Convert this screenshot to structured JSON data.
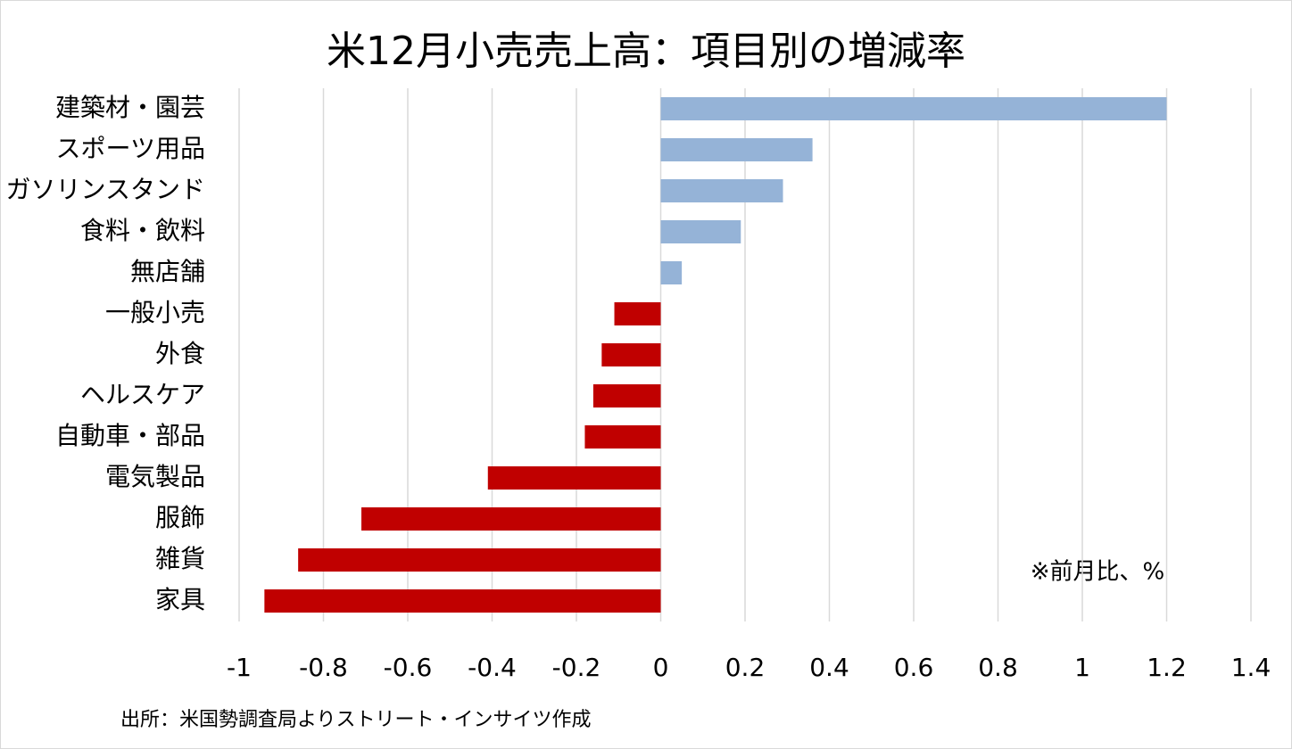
{
  "chart_data": {
    "type": "barh",
    "title": "米12月小売売上高：項目別の増減率",
    "annotation": "※前月比、%",
    "source": "出所：米国勢調査局よりストリート・インサイツ作成",
    "categories": [
      "建築材・園芸",
      "スポーツ用品",
      "ガソリンスタンド",
      "食料・飲料",
      "無店舗",
      "一般小売",
      "外食",
      "ヘルスケア",
      "自動車・部品",
      "電気製品",
      "服飾",
      "雑貨",
      "家具"
    ],
    "values": [
      1.2,
      0.36,
      0.29,
      0.19,
      0.05,
      -0.11,
      -0.14,
      -0.16,
      -0.18,
      -0.41,
      -0.71,
      -0.86,
      -0.94
    ],
    "colors": [
      "#95b3d7",
      "#95b3d7",
      "#95b3d7",
      "#95b3d7",
      "#95b3d7",
      "#c00000",
      "#c00000",
      "#c00000",
      "#c00000",
      "#c00000",
      "#c00000",
      "#c00000",
      "#c00000"
    ],
    "xlim": [
      -1,
      1.4
    ],
    "xticks": [
      -1,
      -0.8,
      -0.6,
      -0.4,
      -0.2,
      0,
      0.2,
      0.4,
      0.6,
      0.8,
      1,
      1.2,
      1.4
    ],
    "grid": true
  }
}
